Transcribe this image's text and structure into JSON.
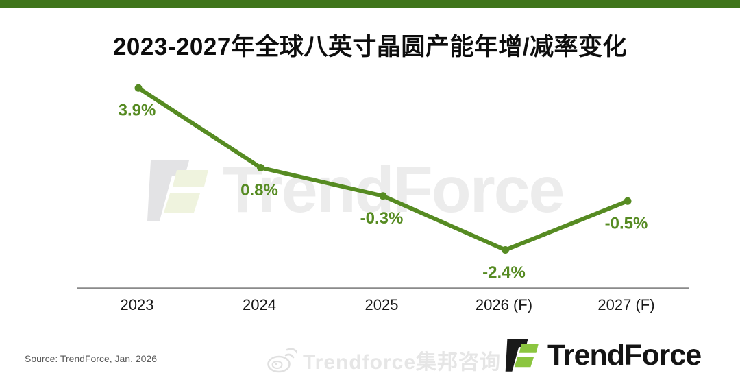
{
  "title": "2023-2027年全球八英寸晶圆产能年增/减率变化",
  "chart_data": {
    "type": "line",
    "categories": [
      "2023",
      "2024",
      "2025",
      "2026 (F)",
      "2027 (F)"
    ],
    "values": [
      3.9,
      0.8,
      -0.3,
      -2.4,
      -0.5
    ],
    "point_labels": [
      "3.9%",
      "0.8%",
      "-0.3%",
      "-2.4%",
      "-0.5%"
    ],
    "title": "2023-2027年全球八英寸晶圆产能年增/减率变化",
    "xlabel": "",
    "ylabel": "",
    "ylim": [
      -3.9,
      4.6
    ],
    "grid": false,
    "legend": false,
    "line_color": "#568b22",
    "label_color": "#568b22",
    "axis_color": "#8a8a8a",
    "tick_color": "#1a1a1a"
  },
  "watermarks": {
    "center_text": "TrendForce",
    "bottom_text": "Trendforce集邦咨询"
  },
  "footer": {
    "source": "Source: TrendForce, Jan. 2026",
    "logo_text": "TrendForce"
  },
  "colors": {
    "top_bar": "#40751b",
    "logo_black": "#191919",
    "logo_green": "#8bc53f"
  }
}
